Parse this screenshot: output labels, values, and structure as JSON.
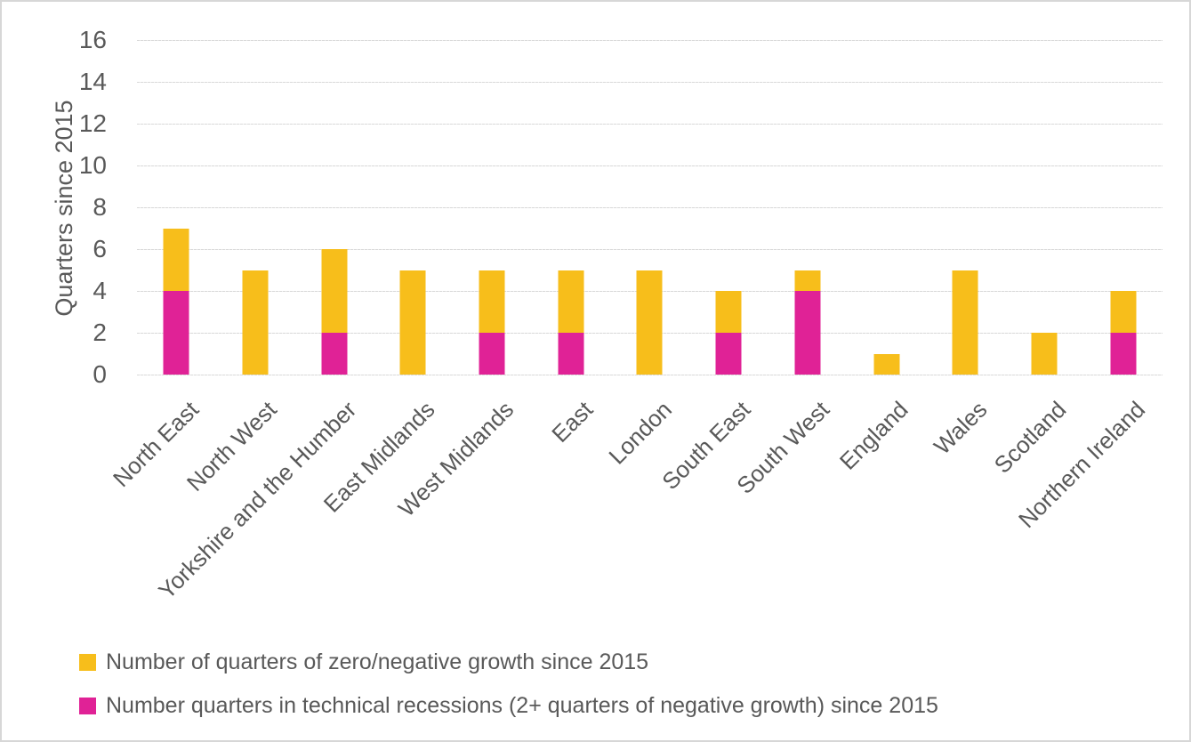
{
  "chart_data": {
    "type": "bar",
    "subtype": "overlay-stacked",
    "title": "",
    "xlabel": "",
    "ylabel": "Quarters since 2015",
    "ylim": [
      0,
      16
    ],
    "y_ticks": [
      0,
      2,
      4,
      6,
      8,
      10,
      12,
      14,
      16
    ],
    "grid": true,
    "legend_position": "bottom-left",
    "categories": [
      "North East",
      "North West",
      "Yorkshire and the Humber",
      "East Midlands",
      "West Midlands",
      "East",
      "London",
      "South East",
      "South West",
      "England",
      "Wales",
      "Scotland",
      "Northern Ireland"
    ],
    "series": [
      {
        "name": "Number of quarters of zero/negative growth since 2015",
        "color": "#F7BE1B",
        "values": [
          7,
          5,
          6,
          5,
          5,
          5,
          5,
          4,
          5,
          1,
          5,
          2,
          4
        ]
      },
      {
        "name": "Number quarters in technical recessions (2+ quarters of negative growth) since 2015",
        "color": "#E02296",
        "values": [
          4,
          0,
          2,
          0,
          2,
          2,
          0,
          2,
          4,
          0,
          0,
          0,
          2
        ]
      }
    ]
  },
  "colors": {
    "axis_text": "#595959",
    "gridline": "#D9D9D9",
    "figure_border": "#D7D7D7",
    "background": "#FFFFFF"
  }
}
